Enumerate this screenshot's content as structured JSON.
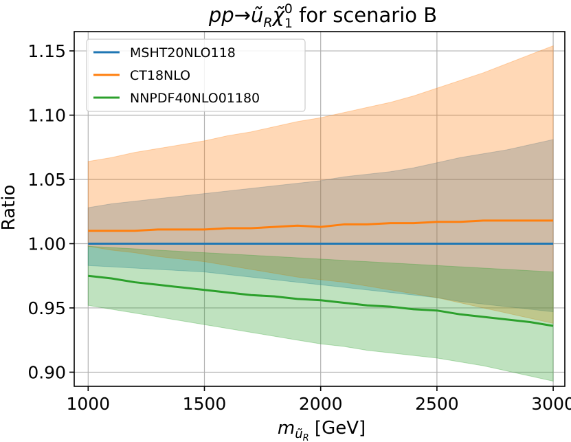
{
  "chart_data": {
    "type": "line",
    "title": "pp→ũ_Rχ̃⁰₁ for scenario B",
    "title_parts": {
      "lhs": "pp",
      "arrow": "→",
      "squark": "ũ",
      "squark_sub": "R",
      "neutralino": "χ̃",
      "neutralino_sup": "0",
      "neutralino_sub": "1",
      "rest": " for scenario B"
    },
    "xlabel": "m_ũR [GeV]",
    "xlabel_parts": {
      "m": "m",
      "sub": "ũ",
      "subsub": "R",
      "unit": " [GeV]"
    },
    "ylabel": "Ratio",
    "xlim": [
      940,
      3050
    ],
    "ylim": [
      0.889,
      1.165
    ],
    "xticks": [
      1000,
      1500,
      2000,
      2500,
      3000
    ],
    "xtick_labels": [
      "1000",
      "1500",
      "2000",
      "2500",
      "3000"
    ],
    "yticks": [
      0.9,
      0.95,
      1.0,
      1.05,
      1.1,
      1.15
    ],
    "ytick_labels": [
      "0.90",
      "0.95",
      "1.00",
      "1.05",
      "1.10",
      "1.15"
    ],
    "grid": true,
    "legend_position": "top-left",
    "x": [
      1000,
      1100,
      1200,
      1300,
      1400,
      1500,
      1600,
      1700,
      1800,
      1900,
      2000,
      2100,
      2200,
      2300,
      2400,
      2500,
      2600,
      2700,
      2800,
      2900,
      3000
    ],
    "series": [
      {
        "name": "MSHT20NLO118",
        "color": "#1f77b4",
        "values": [
          1.0,
          1.0,
          1.0,
          1.0,
          1.0,
          1.0,
          1.0,
          1.0,
          1.0,
          1.0,
          1.0,
          1.0,
          1.0,
          1.0,
          1.0,
          1.0,
          1.0,
          1.0,
          1.0,
          1.0,
          1.0
        ],
        "band_upper": [
          1.028,
          1.031,
          1.033,
          1.035,
          1.037,
          1.039,
          1.041,
          1.043,
          1.045,
          1.047,
          1.049,
          1.052,
          1.054,
          1.056,
          1.059,
          1.063,
          1.067,
          1.07,
          1.073,
          1.077,
          1.081
        ],
        "band_lower": [
          0.983,
          0.982,
          0.981,
          0.98,
          0.979,
          0.978,
          0.976,
          0.974,
          0.972,
          0.97,
          0.968,
          0.966,
          0.964,
          0.962,
          0.96,
          0.958,
          0.955,
          0.953,
          0.951,
          0.949,
          0.947
        ]
      },
      {
        "name": "CT18NLO",
        "color": "#ff7f0e",
        "values": [
          1.01,
          1.01,
          1.01,
          1.011,
          1.011,
          1.011,
          1.012,
          1.012,
          1.013,
          1.014,
          1.013,
          1.015,
          1.015,
          1.016,
          1.016,
          1.017,
          1.017,
          1.018,
          1.018,
          1.018,
          1.018
        ],
        "band_upper": [
          1.064,
          1.067,
          1.071,
          1.074,
          1.077,
          1.08,
          1.084,
          1.087,
          1.091,
          1.095,
          1.098,
          1.102,
          1.106,
          1.11,
          1.115,
          1.121,
          1.127,
          1.133,
          1.14,
          1.147,
          1.154
        ],
        "band_lower": [
          0.998,
          0.995,
          0.993,
          0.99,
          0.988,
          0.986,
          0.983,
          0.98,
          0.977,
          0.974,
          0.972,
          0.97,
          0.967,
          0.964,
          0.961,
          0.958,
          0.954,
          0.95,
          0.946,
          0.942,
          0.938
        ]
      },
      {
        "name": "NNPDF40NLO01180",
        "color": "#2ca02c",
        "values": [
          0.975,
          0.973,
          0.97,
          0.968,
          0.966,
          0.964,
          0.962,
          0.96,
          0.959,
          0.957,
          0.956,
          0.954,
          0.952,
          0.951,
          0.949,
          0.948,
          0.945,
          0.943,
          0.941,
          0.939,
          0.936
        ],
        "band_upper": [
          0.998,
          0.997,
          0.996,
          0.995,
          0.994,
          0.993,
          0.992,
          0.991,
          0.99,
          0.989,
          0.988,
          0.987,
          0.986,
          0.985,
          0.984,
          0.983,
          0.982,
          0.981,
          0.98,
          0.979,
          0.978
        ],
        "band_lower": [
          0.952,
          0.949,
          0.946,
          0.943,
          0.94,
          0.937,
          0.934,
          0.931,
          0.928,
          0.925,
          0.922,
          0.92,
          0.917,
          0.915,
          0.913,
          0.911,
          0.908,
          0.905,
          0.901,
          0.897,
          0.893
        ]
      }
    ]
  }
}
